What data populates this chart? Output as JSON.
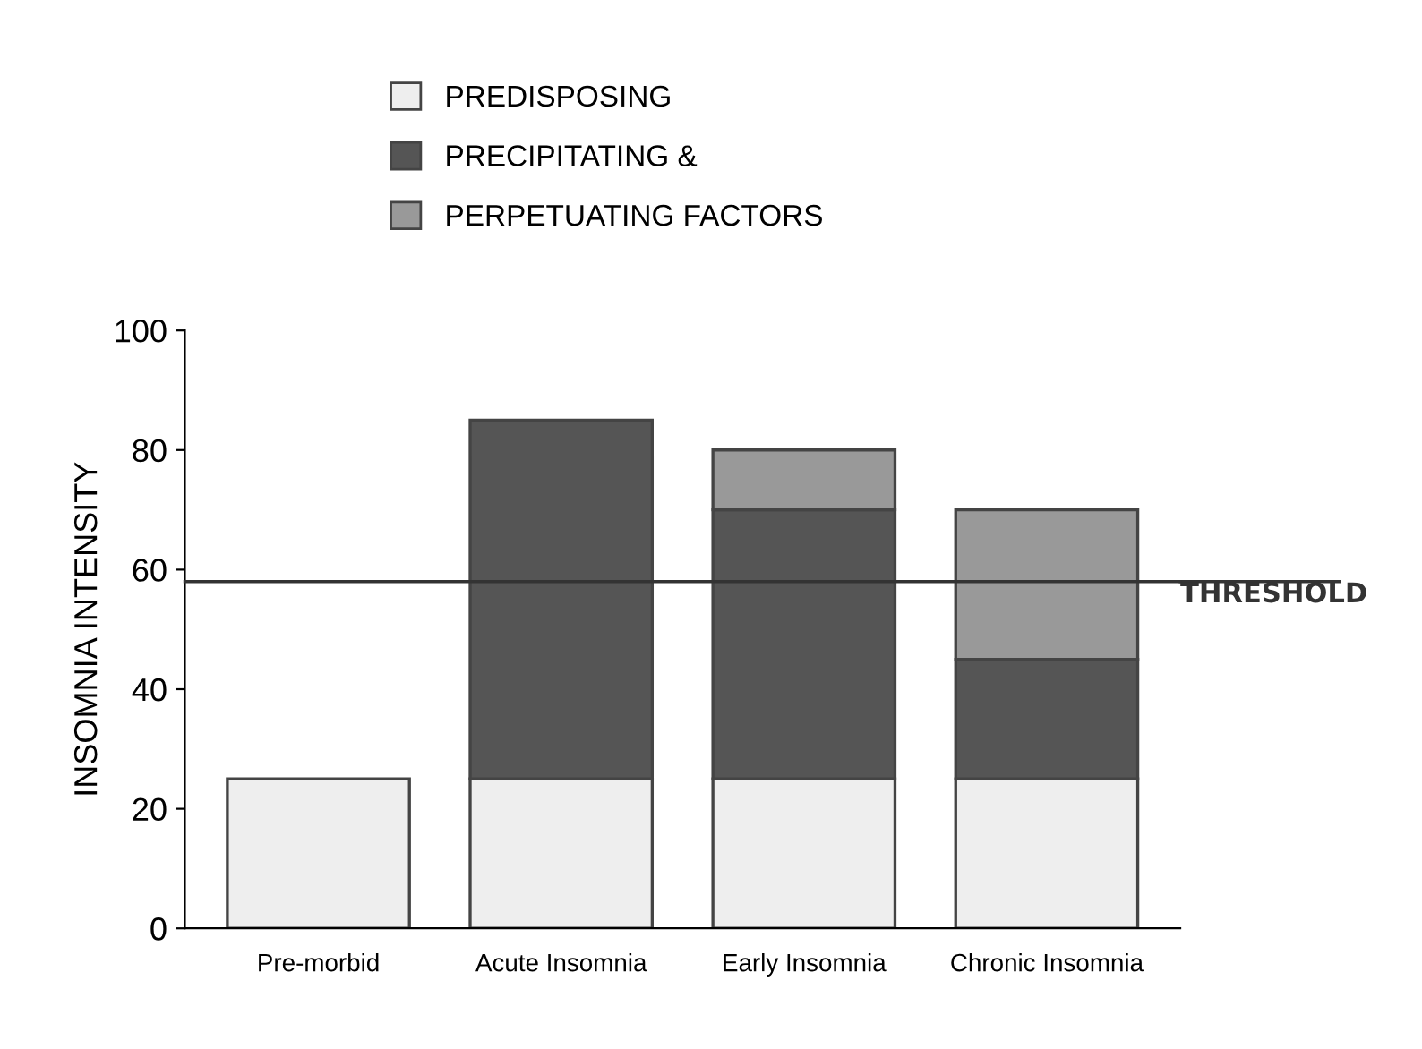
{
  "chart_data": {
    "type": "bar",
    "stacked": true,
    "ylabel": "INSOMNIA INTENSITY",
    "categories": [
      "Pre-morbid",
      "Acute Insomnia",
      "Early Insomnia",
      "Chronic Insomnia"
    ],
    "series": [
      {
        "name": "PREDISPOSING",
        "color": "#eeeeee",
        "values": [
          25,
          25,
          25,
          25
        ]
      },
      {
        "name": "PRECIPITATING &",
        "color": "#555555",
        "values": [
          null,
          60,
          45,
          20
        ]
      },
      {
        "name": "PERPETUATING FACTORS",
        "color": "#999999",
        "values": [
          null,
          null,
          10,
          25
        ]
      }
    ],
    "ylim": [
      0,
      100
    ],
    "yticks": [
      0,
      20,
      40,
      60,
      80,
      100
    ],
    "grid": false,
    "legend": "top",
    "ref_lines": [
      {
        "axis": "y",
        "value": 58,
        "label": "THRESHOLD",
        "color": "#333333",
        "line_style": "solid"
      }
    ]
  }
}
